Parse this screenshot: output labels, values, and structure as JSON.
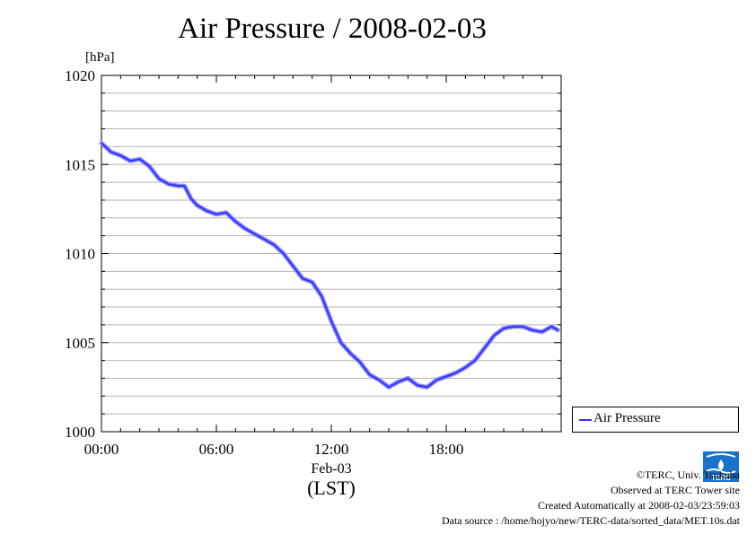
{
  "title": "Air Pressure / 2008-02-03",
  "legend": {
    "label": "Air Pressure"
  },
  "footer": {
    "copyright": "©TERC, Univ. Tsukuba",
    "observed": "Observed at TERC Tower site",
    "created": "Created Automatically at 2008-02-03/23:59:03",
    "source": "Data source : /home/hojyo/new/TERC-data/sorted_data/MET.10s.dat"
  },
  "colors": {
    "line": "#3333ff",
    "grid": "#b4b4b4",
    "axis": "#000000",
    "logo": "#1a73c9"
  },
  "chart_data": {
    "type": "line",
    "title": "Air Pressure / 2008-02-03",
    "ylabel": "[hPa]",
    "xlabel": "(LST)",
    "date_label": "Feb-03",
    "ylim": [
      1000,
      1020
    ],
    "yticks": [
      1000,
      1005,
      1010,
      1015,
      1020
    ],
    "xlim": [
      "00:00",
      "24:00"
    ],
    "xticks": [
      "00:00",
      "06:00",
      "12:00",
      "18:00"
    ],
    "grid": true,
    "legend_position": "right",
    "series": [
      {
        "name": "Air Pressure",
        "x": [
          "00:00",
          "00:30",
          "01:00",
          "01:30",
          "02:00",
          "02:30",
          "03:00",
          "03:30",
          "04:00",
          "04:20",
          "04:40",
          "05:00",
          "05:30",
          "06:00",
          "06:30",
          "07:00",
          "07:30",
          "08:00",
          "08:30",
          "09:00",
          "09:30",
          "10:00",
          "10:30",
          "11:00",
          "11:30",
          "12:00",
          "12:30",
          "13:00",
          "13:30",
          "14:00",
          "14:30",
          "15:00",
          "15:30",
          "16:00",
          "16:30",
          "17:00",
          "17:30",
          "18:00",
          "18:30",
          "19:00",
          "19:30",
          "20:00",
          "20:30",
          "21:00",
          "21:30",
          "22:00",
          "22:30",
          "23:00",
          "23:30",
          "23:50"
        ],
        "values": [
          1016.2,
          1015.7,
          1015.5,
          1015.2,
          1015.3,
          1014.9,
          1014.2,
          1013.9,
          1013.8,
          1013.8,
          1013.1,
          1012.7,
          1012.4,
          1012.2,
          1012.3,
          1011.8,
          1011.4,
          1011.1,
          1010.8,
          1010.5,
          1010.0,
          1009.3,
          1008.6,
          1008.4,
          1007.6,
          1006.2,
          1005.0,
          1004.4,
          1003.9,
          1003.2,
          1002.9,
          1002.5,
          1002.8,
          1003.0,
          1002.6,
          1002.5,
          1002.9,
          1003.1,
          1003.3,
          1003.6,
          1004.0,
          1004.7,
          1005.4,
          1005.8,
          1005.9,
          1005.9,
          1005.7,
          1005.6,
          1005.9,
          1005.7
        ]
      }
    ]
  }
}
